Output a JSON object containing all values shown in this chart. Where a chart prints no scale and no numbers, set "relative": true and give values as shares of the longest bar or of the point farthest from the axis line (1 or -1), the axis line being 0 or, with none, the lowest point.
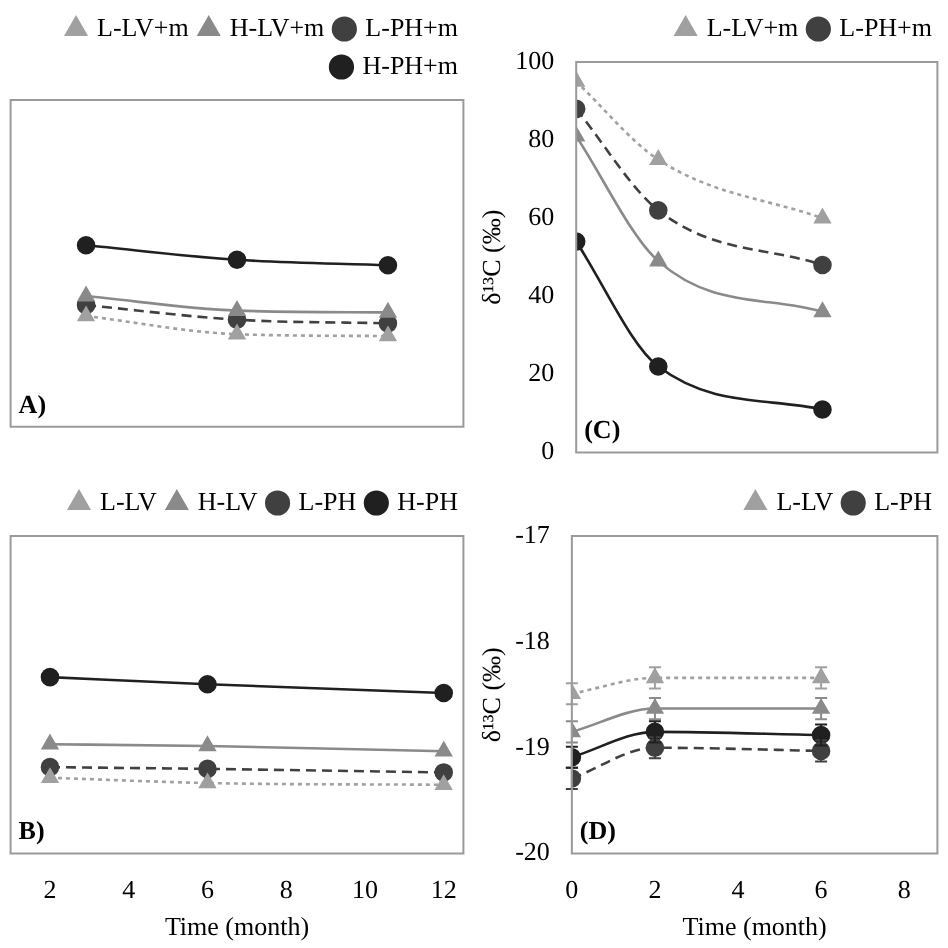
{
  "chart_data": [
    {
      "type": "line",
      "relative": true,
      "categories": [
        null,
        null,
        null
      ],
      "legend": "top right",
      "annotations": [
        "A)"
      ],
      "series": [
        {
          "name": "L-LV+m",
          "color": "#a0a0a0",
          "marker": "triangle",
          "line_style": "dotted",
          "values": [
            0.61,
            0.51,
            0.5
          ]
        },
        {
          "name": "H-LV+m",
          "color": "#8a8a8a",
          "marker": "triangle",
          "line_style": "solid",
          "values": [
            0.72,
            0.64,
            0.63
          ]
        },
        {
          "name": "L-PH+m",
          "color": "#404040",
          "marker": "circle",
          "line_style": "dashed",
          "values": [
            0.67,
            0.59,
            0.57
          ]
        },
        {
          "name": "H-PH+m",
          "color": "#202020",
          "marker": "circle",
          "line_style": "solid",
          "values": [
            1,
            0.92,
            0.89
          ]
        }
      ]
    },
    {
      "type": "line",
      "x": [
        0,
        2,
        6
      ],
      "xlim": [
        0,
        8.8
      ],
      "ylim": [
        0,
        100
      ],
      "yticks": [
        0,
        20,
        40,
        60,
        80,
        100
      ],
      "ylabel": "δ¹³C (‰)",
      "tick_labels": "y",
      "legend": "top right",
      "annotations": [
        "(C)"
      ],
      "series": [
        {
          "name": "L-LV+m",
          "color": "#a0a0a0",
          "marker": "triangle",
          "line_style": "dotted",
          "values": [
            95,
            75,
            60
          ]
        },
        {
          "color": "#8a8a8a",
          "marker": "triangle",
          "line_style": "solid",
          "values": [
            81,
            49,
            36
          ]
        },
        {
          "name": "L-PH+m",
          "color": "#404040",
          "marker": "circle",
          "line_style": "dashed",
          "values": [
            88,
            62,
            48
          ]
        },
        {
          "color": "#202020",
          "marker": "circle",
          "line_style": "solid",
          "values": [
            54,
            22,
            11
          ]
        }
      ]
    },
    {
      "type": "line",
      "relative": true,
      "x": [
        2,
        6,
        12
      ],
      "xlim": [
        1,
        12.5
      ],
      "xticks": [
        2,
        4,
        6,
        8,
        10,
        12
      ],
      "xlabel": "Time (month)",
      "tick_labels": "x",
      "legend": "top right",
      "annotations": [
        "B)"
      ],
      "series": [
        {
          "name": "L-LV",
          "color": "#a0a0a0",
          "marker": "triangle",
          "line_style": "dotted",
          "values": [
            0.43,
            0.4,
            0.39
          ]
        },
        {
          "name": "H-LV",
          "color": "#8a8a8a",
          "marker": "triangle",
          "line_style": "solid",
          "values": [
            0.62,
            0.61,
            0.58
          ]
        },
        {
          "name": "L-PH",
          "color": "#404040",
          "marker": "circle",
          "line_style": "dashed",
          "values": [
            0.49,
            0.48,
            0.46
          ]
        },
        {
          "name": "H-PH",
          "color": "#202020",
          "marker": "circle",
          "line_style": "solid",
          "values": [
            1,
            0.96,
            0.91
          ]
        }
      ]
    },
    {
      "type": "line",
      "x": [
        0,
        2,
        6
      ],
      "xlim": [
        0,
        8.8
      ],
      "xticks": [
        0,
        2,
        4,
        6,
        8
      ],
      "ylim": [
        -20,
        -17
      ],
      "yticks": [
        -20,
        -19,
        -18,
        -17
      ],
      "xlabel": "Time (month)",
      "ylabel": "δ¹³C (‰)",
      "legend": "top right",
      "annotations": [
        "(D)"
      ],
      "series": [
        {
          "name": "L-LV",
          "color": "#a0a0a0",
          "marker": "triangle",
          "line_style": "dotted",
          "values": [
            -18.49,
            -18.34,
            -18.34
          ],
          "errors": [
            0.1,
            0.1,
            0.1
          ]
        },
        {
          "color": "#8a8a8a",
          "marker": "triangle",
          "line_style": "solid",
          "values": [
            -18.85,
            -18.63,
            -18.63
          ],
          "errors": [
            0.1,
            0.1,
            0.1
          ]
        },
        {
          "name": "L-PH",
          "color": "#404040",
          "marker": "circle",
          "line_style": "dashed",
          "values": [
            -19.29,
            -19.0,
            -19.03
          ],
          "errors": [
            0.1,
            0.1,
            0.1
          ]
        },
        {
          "color": "#202020",
          "marker": "circle",
          "line_style": "solid",
          "values": [
            -19.09,
            -18.85,
            -18.88
          ],
          "errors": [
            0.1,
            0.1,
            0.1
          ]
        }
      ]
    }
  ]
}
